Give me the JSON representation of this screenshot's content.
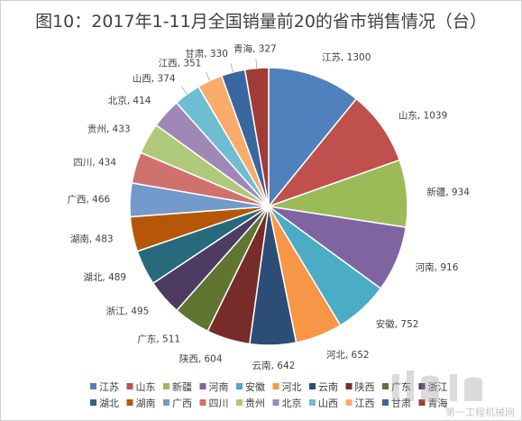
{
  "chart_data": {
    "type": "pie",
    "title": "图10：2017年1-11月全国销量前20的省市销售情况（台）",
    "categories": [
      "江苏",
      "山东",
      "新疆",
      "河南",
      "安徽",
      "河北",
      "云南",
      "陕西",
      "广东",
      "浙江",
      "湖北",
      "湖南",
      "广西",
      "四川",
      "贵州",
      "北京",
      "山西",
      "江西",
      "甘肃",
      "青海"
    ],
    "values": [
      1300,
      1039,
      934,
      916,
      752,
      652,
      642,
      604,
      511,
      495,
      489,
      483,
      466,
      434,
      433,
      414,
      374,
      351,
      330,
      327
    ],
    "colors": [
      "#4f81bd",
      "#c0504d",
      "#9bbb59",
      "#8064a2",
      "#4bacc6",
      "#f79646",
      "#2c4d75",
      "#772c2a",
      "#5f7530",
      "#4d3b62",
      "#276a7c",
      "#b65708",
      "#729aca",
      "#d0716e",
      "#afc97a",
      "#9f88b6",
      "#6fbdd1",
      "#f9ab6b",
      "#3a67a0",
      "#a03b38"
    ],
    "legend_position": "bottom"
  },
  "watermark": "第一工程机械网"
}
